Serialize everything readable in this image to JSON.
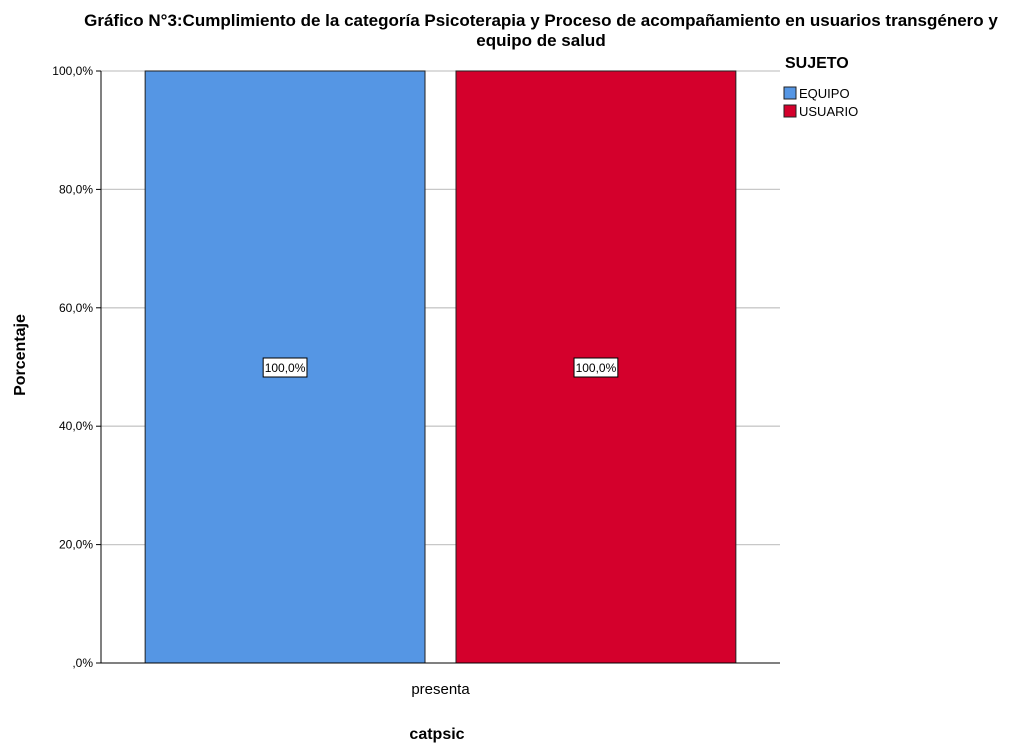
{
  "chart_data": {
    "type": "bar",
    "title_lines": [
      "Gráfico N°3:Cumplimiento de la categoría Psicoterapia y Proceso de acompañamiento en usuarios transgénero y",
      "equipo de salud"
    ],
    "xlabel": "catpsic",
    "ylabel": "Porcentaje",
    "categories": [
      "presenta"
    ],
    "series": [
      {
        "name": "EQUIPO",
        "values": [
          100.0
        ],
        "color": "#5596e4",
        "data_label": "100,0%"
      },
      {
        "name": "USUARIO",
        "values": [
          100.0
        ],
        "color": "#d4002c",
        "data_label": "100,0%"
      }
    ],
    "ylim": [
      0,
      100
    ],
    "yticks": [
      {
        "value": 0,
        "label": ",0%"
      },
      {
        "value": 20,
        "label": "20,0%"
      },
      {
        "value": 40,
        "label": "40,0%"
      },
      {
        "value": 60,
        "label": "60,0%"
      },
      {
        "value": 80,
        "label": "80,0%"
      },
      {
        "value": 100,
        "label": "100,0%"
      }
    ],
    "grid": true,
    "legend": {
      "title": "SUJETO",
      "position": "top-right"
    }
  }
}
